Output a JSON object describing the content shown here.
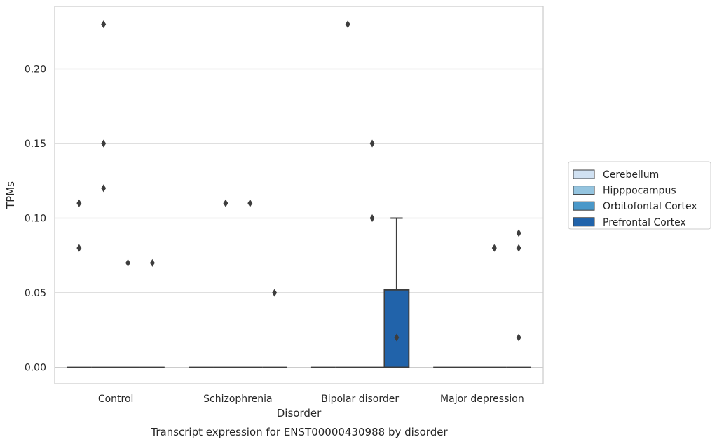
{
  "chart_data": {
    "type": "box",
    "title": "",
    "caption": "Transcript expression for ENST00000430988 by disorder",
    "xlabel": "Disorder",
    "ylabel": "TPMs",
    "categories": [
      "Control",
      "Schizophrenia",
      "Bipolar disorder",
      "Major depression"
    ],
    "ylim": [
      -0.011,
      0.242
    ],
    "yticks": [
      0.0,
      0.05,
      0.1,
      0.15,
      0.2
    ],
    "ytick_labels": [
      "0.00",
      "0.05",
      "0.10",
      "0.15",
      "0.20"
    ],
    "grid": true,
    "legend_position": "right",
    "series": [
      {
        "name": "Cerebellum",
        "color": "#d0e1f2",
        "boxes": [
          {
            "category": "Control",
            "q1": 0,
            "median": 0,
            "q3": 0,
            "whisker_low": 0,
            "whisker_high": 0,
            "outliers": [
              0.11,
              0.08
            ]
          },
          {
            "category": "Schizophrenia",
            "q1": 0,
            "median": 0,
            "q3": 0,
            "whisker_low": 0,
            "whisker_high": 0,
            "outliers": []
          },
          {
            "category": "Bipolar disorder",
            "q1": 0,
            "median": 0,
            "q3": 0,
            "whisker_low": 0,
            "whisker_high": 0,
            "outliers": []
          },
          {
            "category": "Major depression",
            "q1": 0,
            "median": 0,
            "q3": 0,
            "whisker_low": 0,
            "whisker_high": 0,
            "outliers": []
          }
        ]
      },
      {
        "name": "Hipppocampus",
        "color": "#94c4df",
        "boxes": [
          {
            "category": "Control",
            "q1": 0,
            "median": 0,
            "q3": 0,
            "whisker_low": 0,
            "whisker_high": 0,
            "outliers": [
              0.23,
              0.15,
              0.12
            ]
          },
          {
            "category": "Schizophrenia",
            "q1": 0,
            "median": 0,
            "q3": 0,
            "whisker_low": 0,
            "whisker_high": 0,
            "outliers": [
              0.11
            ]
          },
          {
            "category": "Bipolar disorder",
            "q1": 0,
            "median": 0,
            "q3": 0,
            "whisker_low": 0,
            "whisker_high": 0,
            "outliers": [
              0.23
            ]
          },
          {
            "category": "Major depression",
            "q1": 0,
            "median": 0,
            "q3": 0,
            "whisker_low": 0,
            "whisker_high": 0,
            "outliers": []
          }
        ]
      },
      {
        "name": "Orbitofontal Cortex",
        "color": "#4a98c9",
        "boxes": [
          {
            "category": "Control",
            "q1": 0,
            "median": 0,
            "q3": 0,
            "whisker_low": 0,
            "whisker_high": 0,
            "outliers": [
              0.07
            ]
          },
          {
            "category": "Schizophrenia",
            "q1": 0,
            "median": 0,
            "q3": 0,
            "whisker_low": 0,
            "whisker_high": 0,
            "outliers": [
              0.11
            ]
          },
          {
            "category": "Bipolar disorder",
            "q1": 0,
            "median": 0,
            "q3": 0,
            "whisker_low": 0,
            "whisker_high": 0,
            "outliers": [
              0.15,
              0.1
            ]
          },
          {
            "category": "Major depression",
            "q1": 0,
            "median": 0,
            "q3": 0,
            "whisker_low": 0,
            "whisker_high": 0,
            "outliers": [
              0.08
            ]
          }
        ]
      },
      {
        "name": "Prefrontal Cortex",
        "color": "#2163aa",
        "boxes": [
          {
            "category": "Control",
            "q1": 0,
            "median": 0,
            "q3": 0,
            "whisker_low": 0,
            "whisker_high": 0,
            "outliers": [
              0.07
            ]
          },
          {
            "category": "Schizophrenia",
            "q1": 0,
            "median": 0,
            "q3": 0,
            "whisker_low": 0,
            "whisker_high": 0,
            "outliers": [
              0.05
            ]
          },
          {
            "category": "Bipolar disorder",
            "q1": 0,
            "median": 0,
            "q3": 0.052,
            "whisker_low": 0,
            "whisker_high": 0.1,
            "outliers": [
              0.02
            ]
          },
          {
            "category": "Major depression",
            "q1": 0,
            "median": 0,
            "q3": 0,
            "whisker_low": 0,
            "whisker_high": 0,
            "outliers": [
              0.09,
              0.08,
              0.02
            ]
          }
        ]
      }
    ]
  }
}
